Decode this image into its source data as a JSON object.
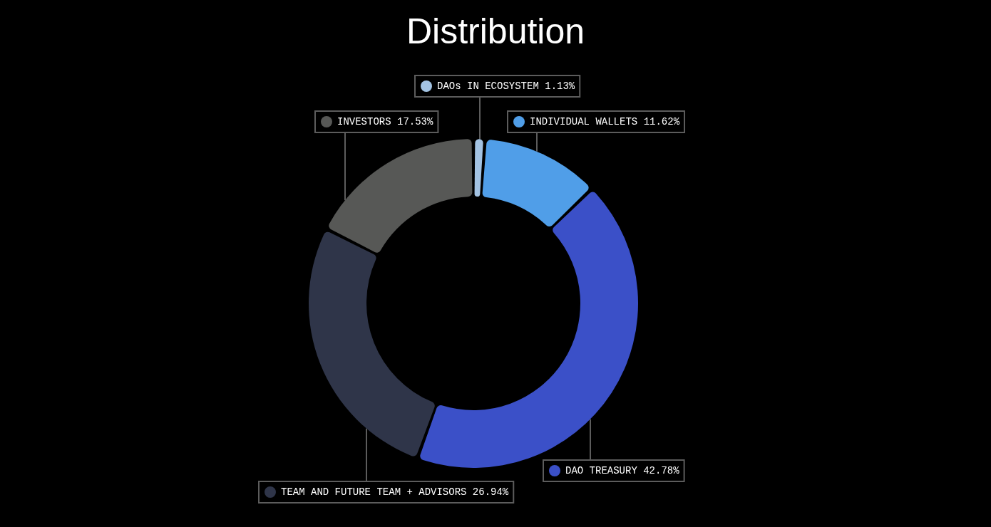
{
  "chart_data": {
    "type": "donut",
    "title": "Distribution",
    "categories": [
      "DAOs IN ECOSYSTEM",
      "INDIVIDUAL WALLETS",
      "DAO TREASURY",
      "TEAM AND FUTURE TEAM + ADVISORS",
      "INVESTORS"
    ],
    "values": [
      1.13,
      11.62,
      42.78,
      26.94,
      17.53
    ],
    "colors": [
      "#a3c3e3",
      "#509ee8",
      "#3b50c8",
      "#2f3549",
      "#575856"
    ],
    "value_labels": [
      "1.13%",
      "11.62%",
      "42.78%",
      "26.94%",
      "17.53%"
    ],
    "legend": "top"
  }
}
